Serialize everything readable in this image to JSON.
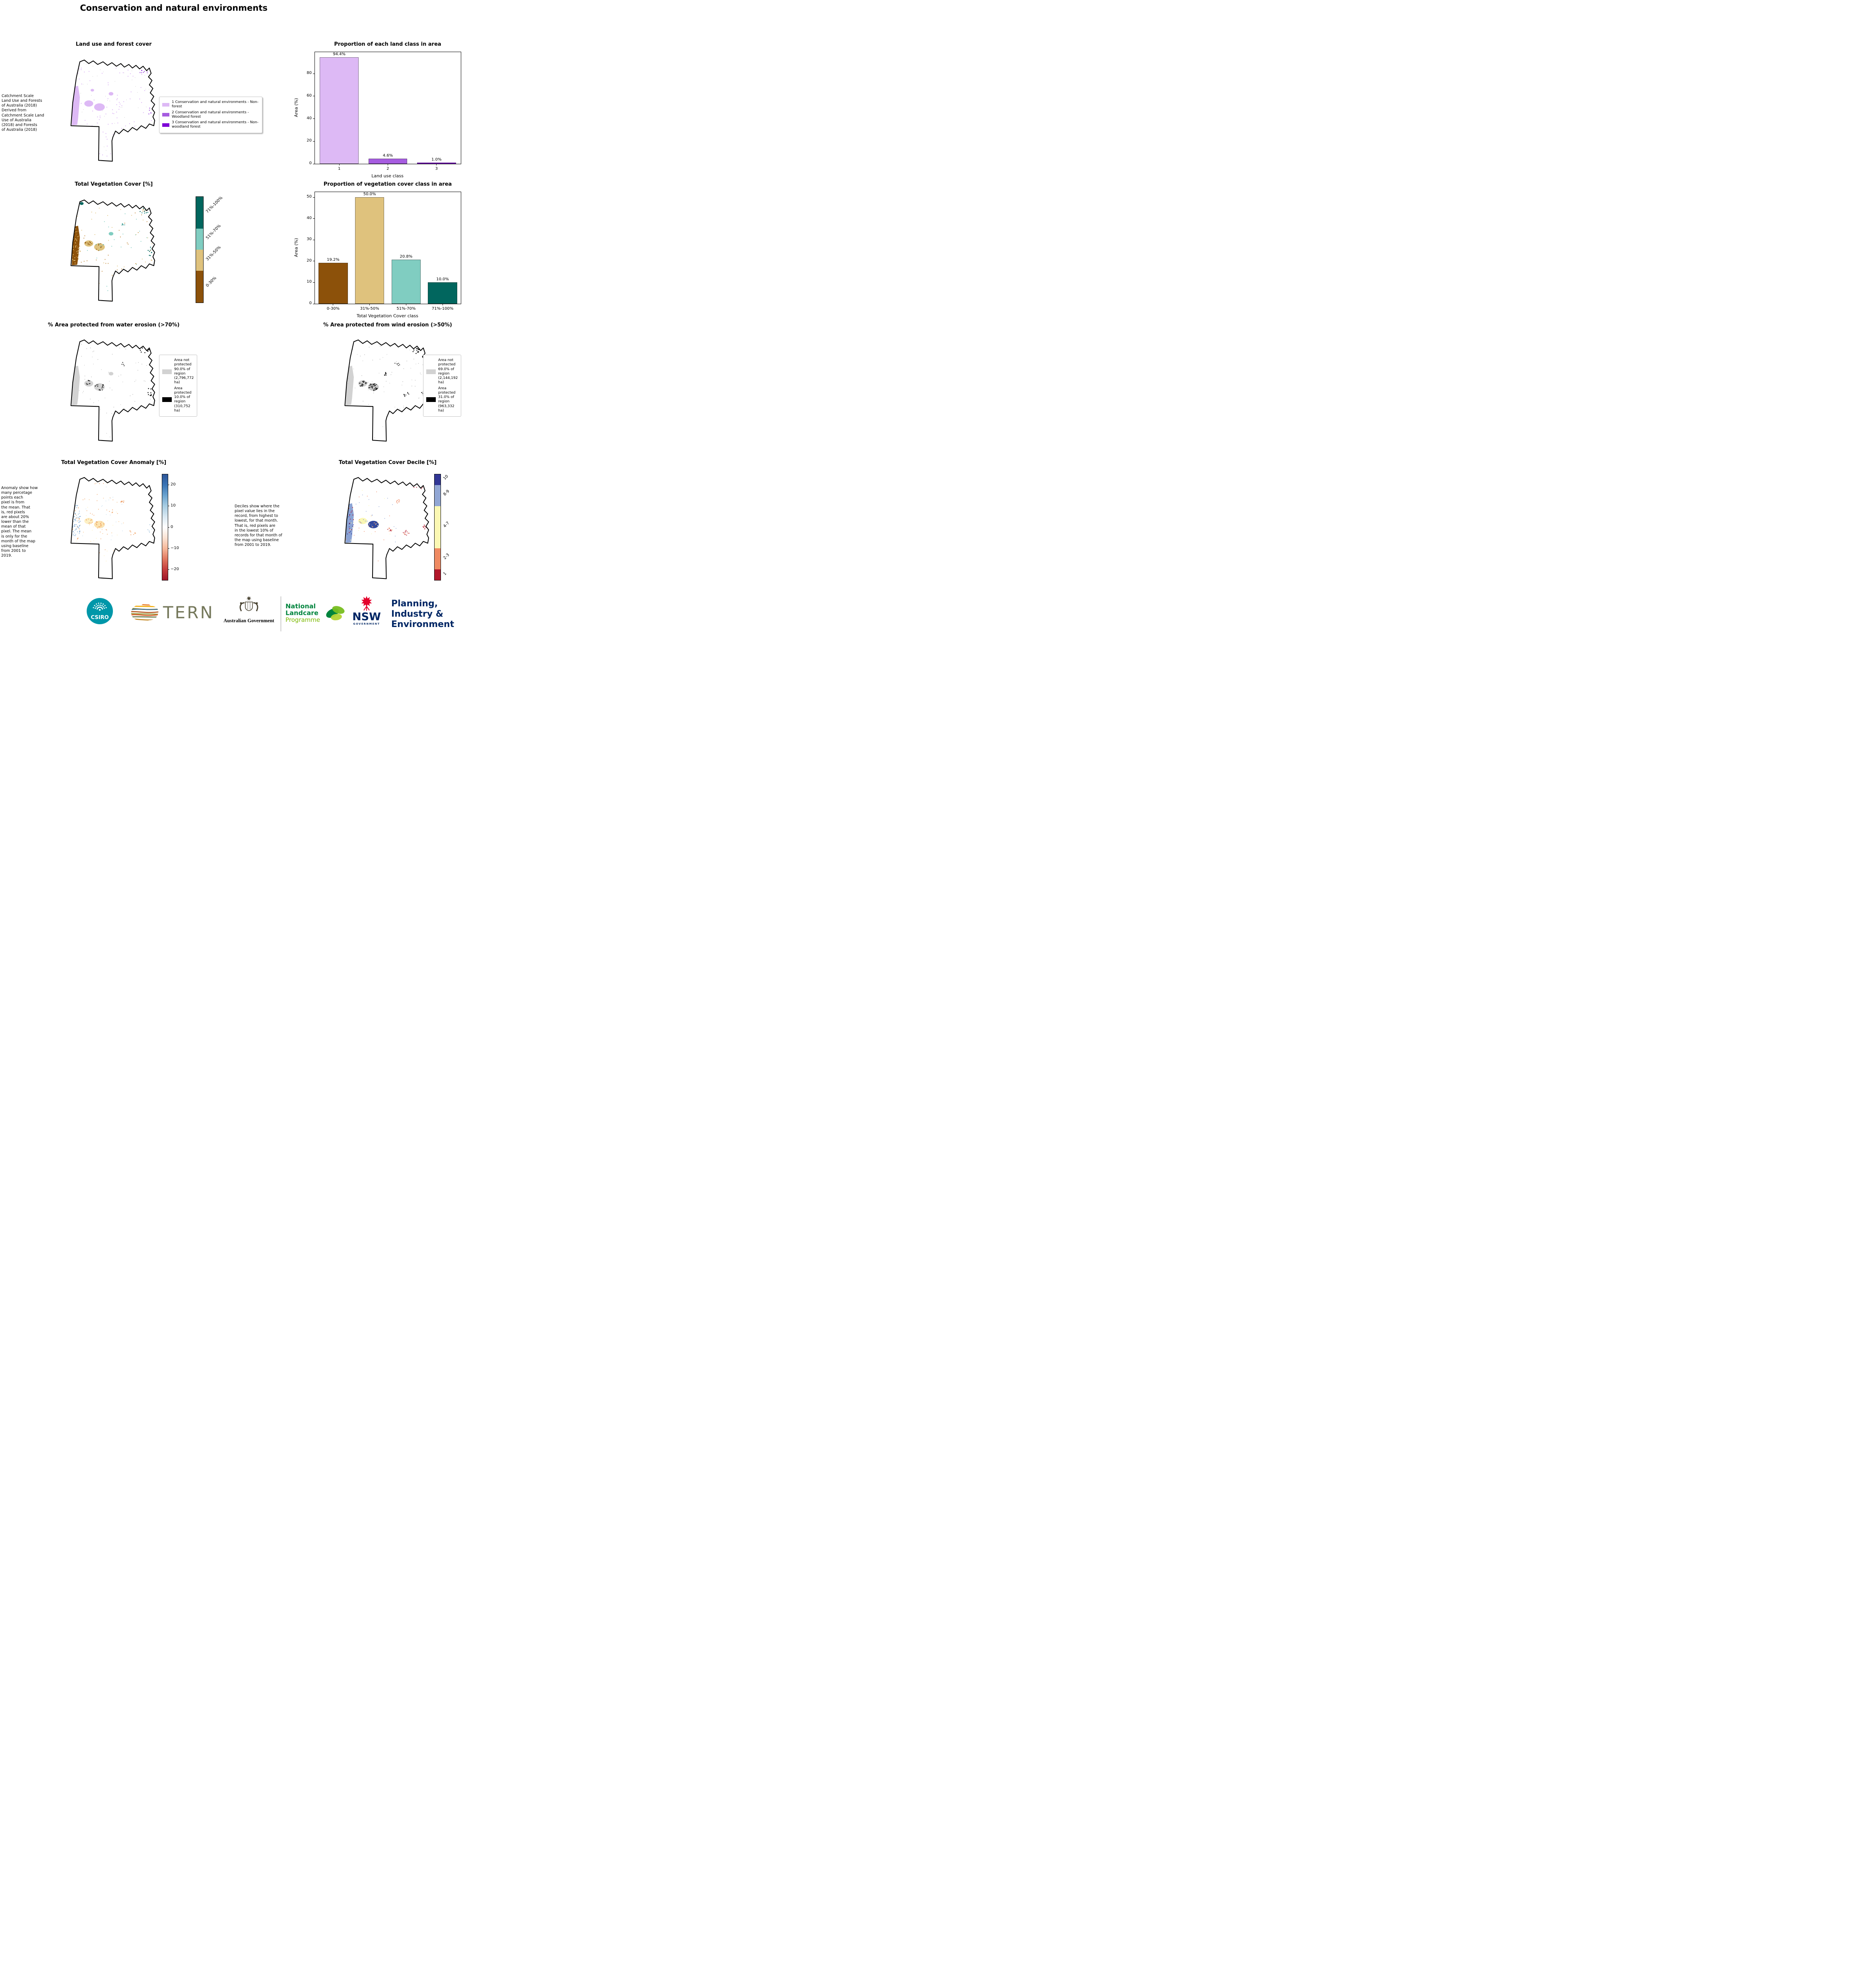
{
  "page": {
    "title": "Conservation and natural environments"
  },
  "land_use": {
    "title": "Land use and forest cover",
    "source_note": " Catchment Scale\nLand Use and Forests\nof Australia (2018)\nDerived from\nCatchment Scale Land\nUse of Australia\n(2018) and Forests\nof Australia (2018)",
    "legend": [
      {
        "label": "1 Conservation and natural environments - Non-forest",
        "color": "#ddb9f5"
      },
      {
        "label": "2 Conservation and natural environments - Woodland forest",
        "color": "#a65ce0"
      },
      {
        "label": "3 Conservation and natural environments - Non-woodland forest",
        "color": "#7d00d6"
      }
    ]
  },
  "vegetation": {
    "title": "Total Vegetation Cover [%]",
    "colorbar": [
      {
        "label": "71%-100%",
        "color": "#01665e",
        "span": 30
      },
      {
        "label": "51%-70%",
        "color": "#80cdc1",
        "span": 20
      },
      {
        "label": "31%-50%",
        "color": "#dfc27d",
        "span": 20
      },
      {
        "label": "0-30%",
        "color": "#8c510a",
        "span": 30
      }
    ]
  },
  "water_erosion": {
    "title": "% Area protected from water erosion (>70%)",
    "legend": [
      {
        "label": "Area not\nprotected\n90.0% of\nregion\n(2,796,772\nha)",
        "color": "#d2d2d2"
      },
      {
        "label": "Area\nprotected\n10.0% of\nregion\n(310,752\nha)",
        "color": "#000000"
      }
    ]
  },
  "wind_erosion": {
    "title": "% Area protected from wind erosion (>50%)",
    "legend": [
      {
        "label": "Area not\nprotected\n69.0% of\nregion\n(2,144,192\nha)",
        "color": "#d2d2d2"
      },
      {
        "label": "Area\nprotected\n31.0% of\nregion\n(963,332\nha)",
        "color": "#000000"
      }
    ]
  },
  "anomaly": {
    "title": "Total Vegetation Cover Anomaly [%]",
    "note": "Anomaly show how\nmany percetage\npoints each\npixel is from\nthe mean. That\nis, red pixels\nare about 20%\nlower than the\nmean of that\npixel. The mean\nis only for the\nmonth of the map\nusing baseline\nfrom 2001 to\n2019.",
    "colorbar": {
      "vmin": -25,
      "vmax": 25,
      "ticks": [
        {
          "value": 20,
          "label": "20"
        },
        {
          "value": 10,
          "label": "10"
        },
        {
          "value": 0,
          "label": "0"
        },
        {
          "value": -10,
          "label": "−10"
        },
        {
          "value": -20,
          "label": "−20"
        }
      ],
      "gradient_top_to_bottom": [
        "#2c5597",
        "#3a74b4",
        "#6ba3cf",
        "#a8cde2",
        "#d9e8f2",
        "#ffffff",
        "#fbe3d4",
        "#f6b89a",
        "#e17860",
        "#c43c3c",
        "#9e1528"
      ]
    }
  },
  "decile": {
    "title": "Total Vegetation Cover Decile [%]",
    "note": "Deciles show where the\npixel value lies in the\nrecord, from highest to\nlowest, for that month.\nThat is, red pixels are\nin the lowest 10% of\nrecords for that month of\nthe map using baseline\nfrom 2001 to 2019.",
    "colorbar": [
      {
        "label": "10",
        "color": "#313695",
        "span": 10
      },
      {
        "label": "8-9",
        "color": "#91a6d4",
        "span": 20
      },
      {
        "label": "4-7",
        "color": "#fbf8b4",
        "span": 40
      },
      {
        "label": "2-3",
        "color": "#ef8a62",
        "span": 20
      },
      {
        "label": "1",
        "color": "#b2182b",
        "span": 10
      }
    ]
  },
  "chart_data": [
    {
      "type": "bar",
      "title": "Proportion of each land class in area",
      "xlabel": "Land use class",
      "ylabel": "Area (%)",
      "categories": [
        "1",
        "2",
        "3"
      ],
      "values": [
        94.4,
        4.6,
        1.0
      ],
      "bar_labels": [
        "94.4%",
        "4.6%",
        "1.0%"
      ],
      "colors": [
        "#ddb9f5",
        "#a65ce0",
        "#7d00d6"
      ],
      "yticks": [
        0,
        20,
        40,
        60,
        80
      ],
      "ylim": [
        0,
        99.1
      ],
      "grid": false,
      "legend_position": "none"
    },
    {
      "type": "bar",
      "title": "Proportion of vegetation cover class in area",
      "xlabel": "Total Vegetation Cover class",
      "ylabel": "Area (%)",
      "categories": [
        "0-30%",
        "31%-50%",
        "51%-70%",
        "71%-100%"
      ],
      "values": [
        19.2,
        50.0,
        20.8,
        10.0
      ],
      "bar_labels": [
        "19.2%",
        "50.0%",
        "20.8%",
        "10.0%"
      ],
      "colors": [
        "#8c510a",
        "#dfc27d",
        "#80cdc1",
        "#01665e"
      ],
      "yticks": [
        0,
        10,
        20,
        30,
        40,
        50
      ],
      "ylim": [
        0,
        52.5
      ],
      "grid": false,
      "legend_position": "none"
    }
  ],
  "map_colors": {
    "land_use": [
      "#ddb9f5",
      "#a65ce0",
      "#7d00d6"
    ],
    "vegetation": [
      "#8c510a",
      "#dfc27d",
      "#80cdc1",
      "#01665e",
      "#bf812d",
      "#35978f"
    ],
    "erosion": [
      "#d2d2d2",
      "#000000"
    ],
    "anomaly_accents": [
      "#f2a96e",
      "#f6c690",
      "#fdf0c4",
      "#9fc4e0",
      "#6b9ac9",
      "#e8853f",
      "#cfe3f0"
    ],
    "decile_accents": [
      "#8ba3d4",
      "#313695",
      "#b2182b",
      "#ef8a62",
      "#fbf8b4",
      "#91a6d4",
      "#31489e"
    ]
  },
  "footer": {
    "csiro": "CSIRO",
    "tern": "TERN",
    "aus_gov": "Australian Government",
    "landcare_line1": "National",
    "landcare_line2": "Landcare",
    "landcare_line3": "Programme",
    "nsw": "NSW",
    "nsw_sub": "GOVERNMENT",
    "pie_line1": "Planning,",
    "pie_line2": "Industry &",
    "pie_line3": "Environment"
  }
}
